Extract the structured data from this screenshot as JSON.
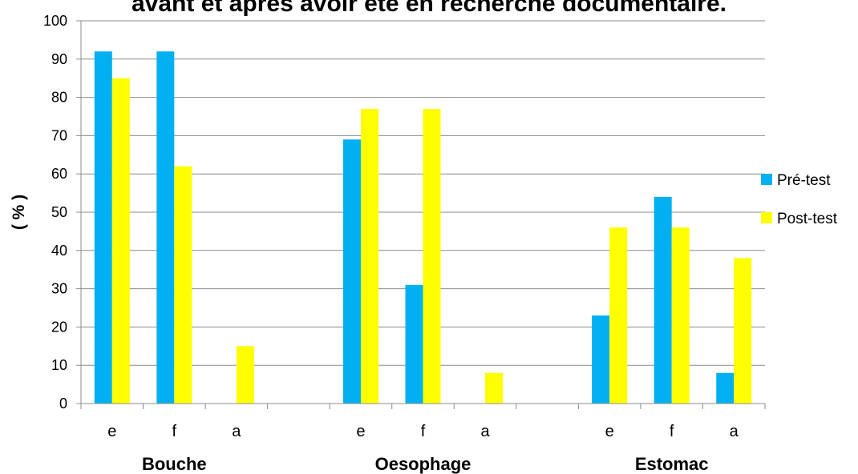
{
  "chart_data": {
    "type": "bar",
    "title": "avant et après avoir été en recherche documentaire.",
    "ylabel": "( % )",
    "xlabel": "",
    "ylim": [
      0,
      100
    ],
    "yticks": [
      0,
      10,
      20,
      30,
      40,
      50,
      60,
      70,
      80,
      90,
      100
    ],
    "grid": true,
    "legend_position": "right",
    "categories": [
      "e",
      "f",
      "a",
      "",
      "e",
      "f",
      "a",
      "",
      "e",
      "f",
      "a"
    ],
    "groups": [
      {
        "label": "Bouche",
        "slots": [
          0,
          1,
          2
        ]
      },
      {
        "label": "Oesophage",
        "slots": [
          4,
          5,
          6
        ]
      },
      {
        "label": "Estomac",
        "slots": [
          8,
          9,
          10
        ]
      }
    ],
    "series": [
      {
        "name": "Pré-test",
        "color": "#00B0F0",
        "values": [
          92,
          92,
          0,
          null,
          69,
          31,
          0,
          null,
          23,
          54,
          8
        ]
      },
      {
        "name": "Post-test",
        "color": "#FFFF00",
        "values": [
          85,
          62,
          15,
          null,
          77,
          77,
          8,
          null,
          46,
          46,
          38
        ]
      }
    ]
  }
}
